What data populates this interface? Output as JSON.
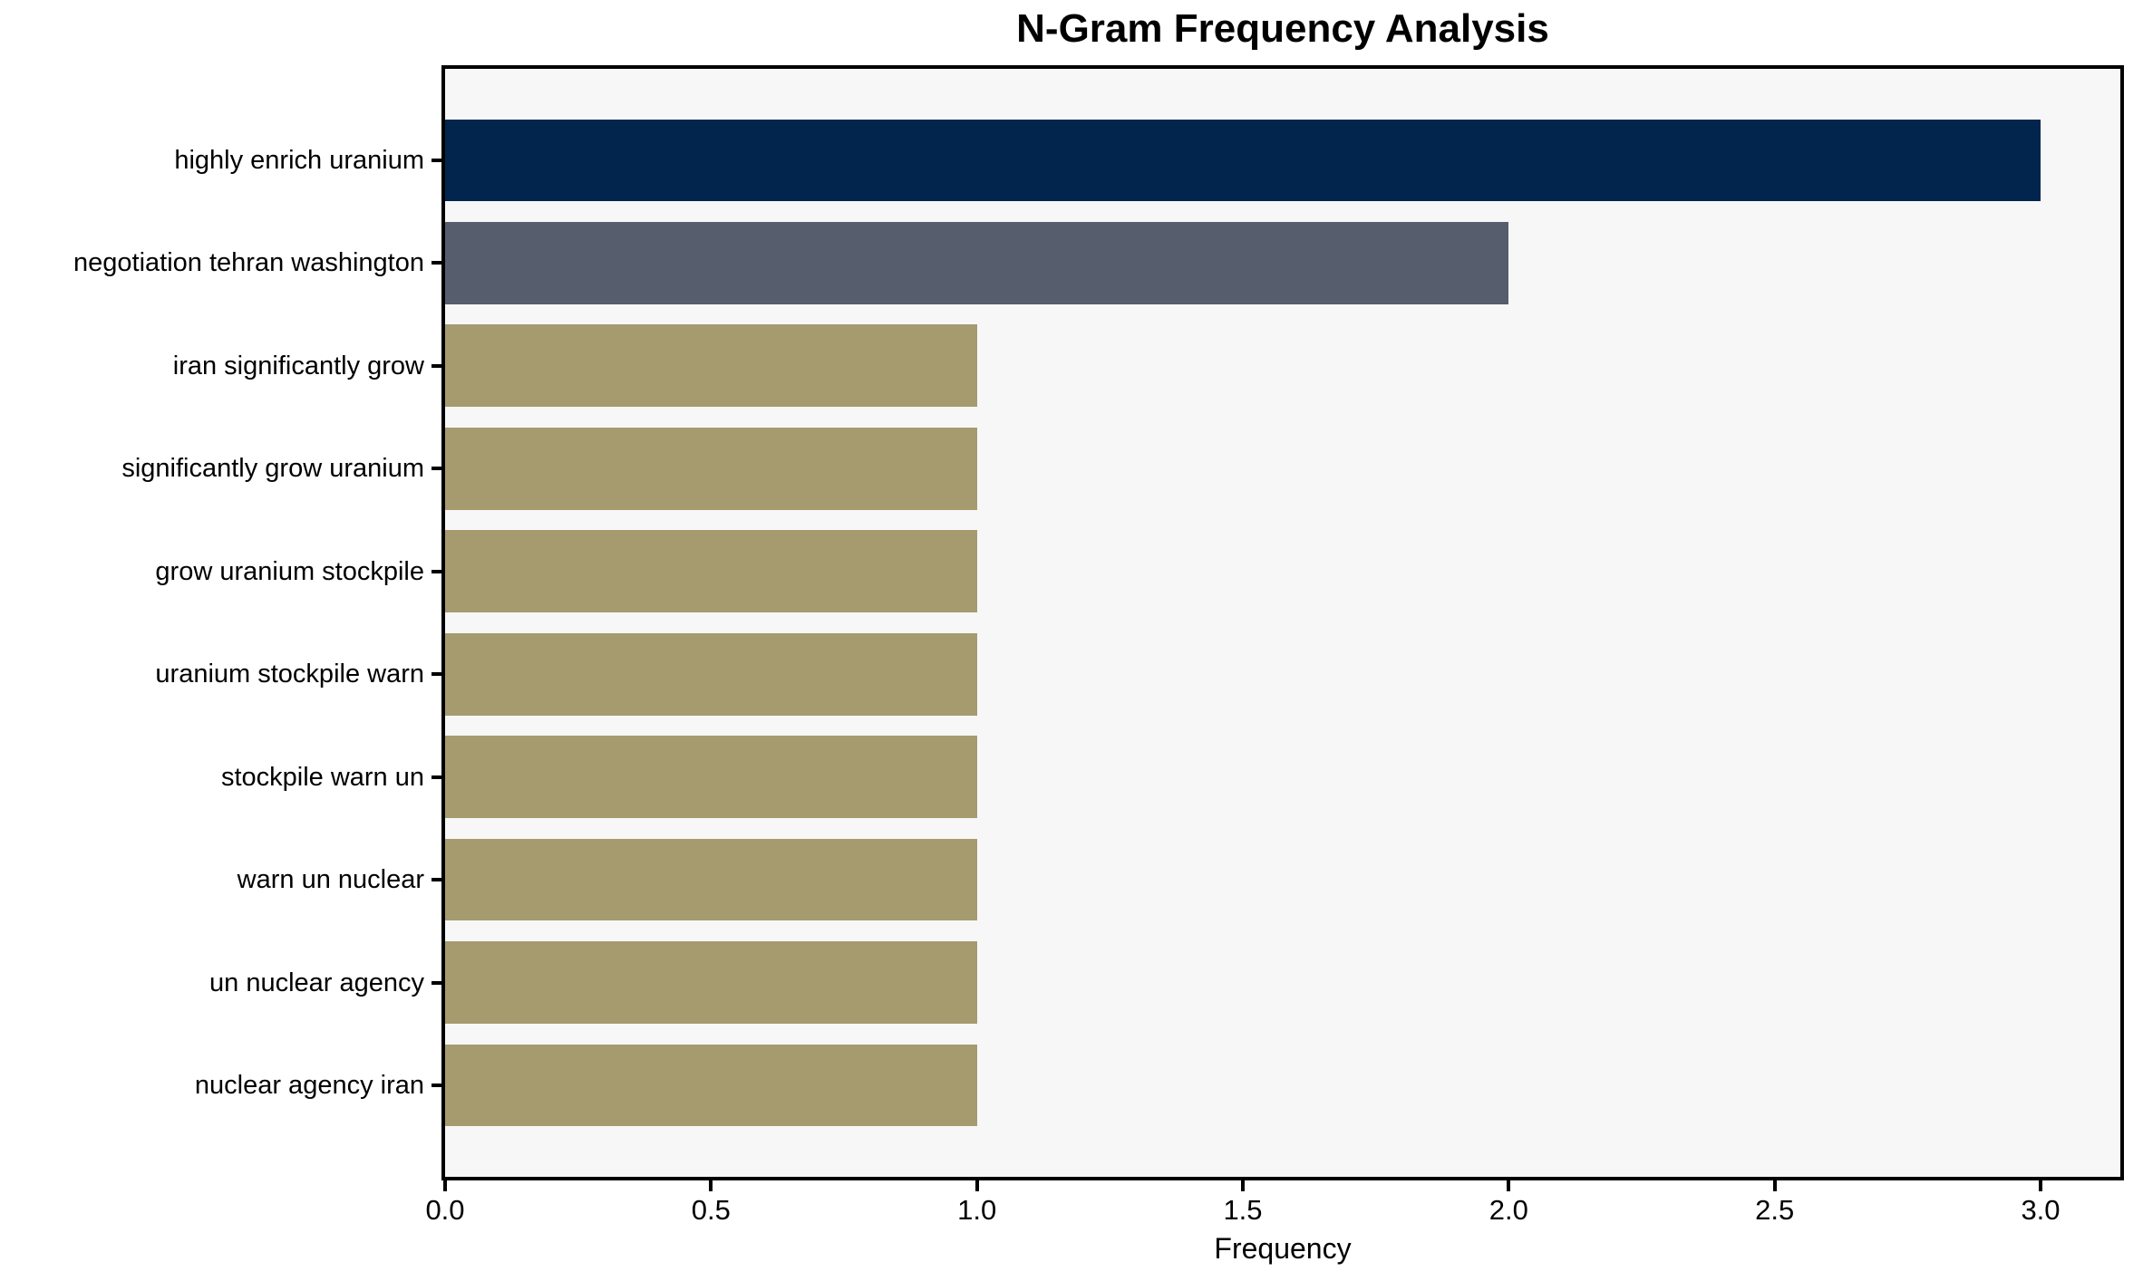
{
  "colors": {
    "page_background": "#ffffff",
    "plot_background": "#f7f7f8",
    "spine": "#000000",
    "text": "#000000",
    "bar_top": "#02254d",
    "bar_second": "#565d6c",
    "bar_default": "#a69b6f"
  },
  "chart_data": {
    "type": "bar",
    "orientation": "horizontal",
    "title": "N-Gram Frequency Analysis",
    "xlabel": "Frequency",
    "ylabel": "",
    "categories": [
      "highly enrich uranium",
      "negotiation tehran washington",
      "iran significantly grow",
      "significantly grow uranium",
      "grow uranium stockpile",
      "uranium stockpile warn",
      "stockpile warn un",
      "warn un nuclear",
      "un nuclear agency",
      "nuclear agency iran"
    ],
    "values": [
      3,
      2,
      1,
      1,
      1,
      1,
      1,
      1,
      1,
      1
    ],
    "bar_colors": [
      "#02254d",
      "#565d6c",
      "#a69b6f",
      "#a69b6f",
      "#a69b6f",
      "#a69b6f",
      "#a69b6f",
      "#a69b6f",
      "#a69b6f",
      "#a69b6f"
    ],
    "xlim": [
      0,
      3.15
    ],
    "xticks": [
      0.0,
      0.5,
      1.0,
      1.5,
      2.0,
      2.5,
      3.0
    ],
    "xtick_labels": [
      "0.0",
      "0.5",
      "1.0",
      "1.5",
      "2.0",
      "2.5",
      "3.0"
    ],
    "grid": false,
    "legend": null
  }
}
